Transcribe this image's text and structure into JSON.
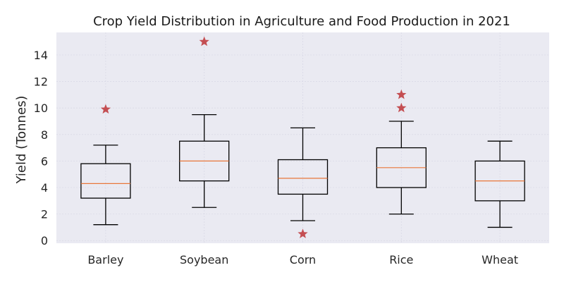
{
  "chart_data": {
    "type": "box",
    "title": "Crop Yield Distribution in Agriculture and Food Production in 2021",
    "xlabel": "",
    "ylabel": "Yield (Tonnes)",
    "categories": [
      "Barley",
      "Soybean",
      "Corn",
      "Rice",
      "Wheat"
    ],
    "boxes": [
      {
        "category": "Barley",
        "whisker_low": 1.2,
        "q1": 3.2,
        "median": 4.3,
        "q3": 5.8,
        "whisker_high": 7.2,
        "outliers": [
          9.9
        ]
      },
      {
        "category": "Soybean",
        "whisker_low": 2.5,
        "q1": 4.5,
        "median": 6.0,
        "q3": 7.5,
        "whisker_high": 9.5,
        "outliers": [
          15.0
        ]
      },
      {
        "category": "Corn",
        "whisker_low": 1.5,
        "q1": 3.5,
        "median": 4.7,
        "q3": 6.1,
        "whisker_high": 8.5,
        "outliers": [
          0.5
        ]
      },
      {
        "category": "Rice",
        "whisker_low": 2.0,
        "q1": 4.0,
        "median": 5.5,
        "q3": 7.0,
        "whisker_high": 9.0,
        "outliers": [
          10.0,
          11.0
        ]
      },
      {
        "category": "Wheat",
        "whisker_low": 1.0,
        "q1": 3.0,
        "median": 4.5,
        "q3": 6.0,
        "whisker_high": 7.5,
        "outliers": []
      }
    ],
    "yticks": [
      0,
      2,
      4,
      6,
      8,
      10,
      12,
      14
    ],
    "ylim": [
      -0.2,
      15.7
    ],
    "grid": true,
    "colors": {
      "background": "#eaeaf2",
      "box": "#000000",
      "median": "#e8763a",
      "outlier": "#c44e52"
    }
  }
}
